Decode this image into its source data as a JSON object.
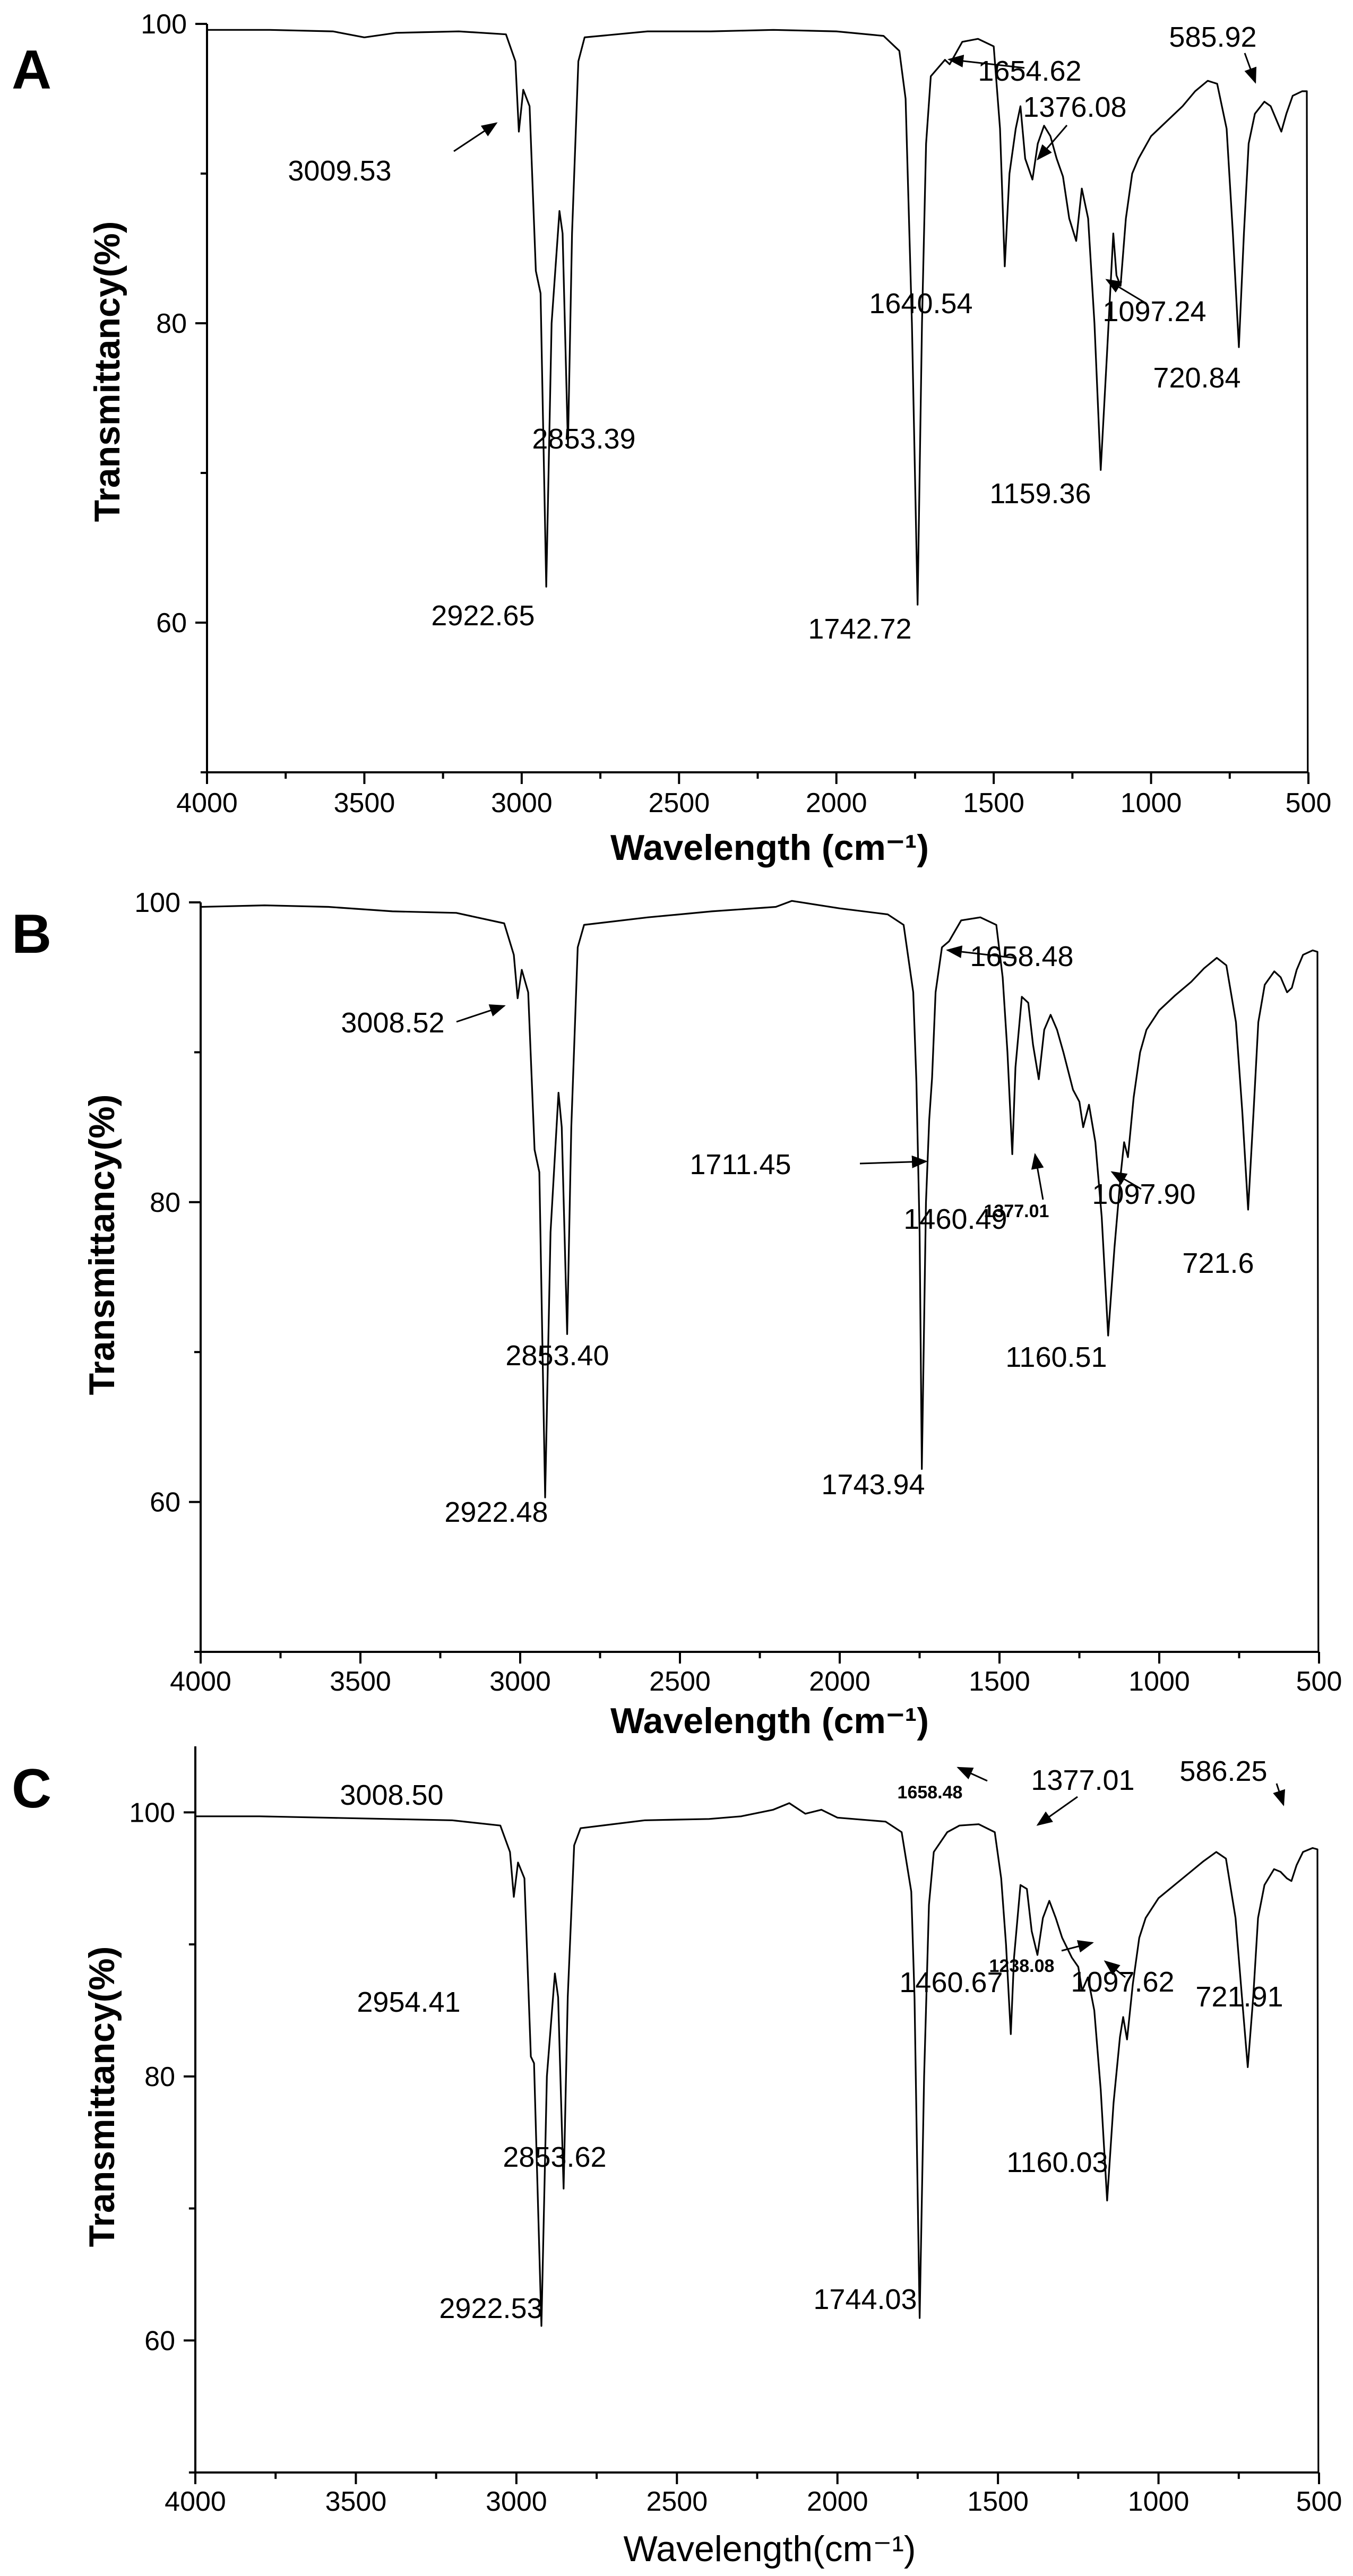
{
  "figure": "FTIR spectra panels A, B, C",
  "chart_data": [
    {
      "panel": "A",
      "type": "line",
      "title": "",
      "xlabel": "Wavelength (cm⁻¹)",
      "ylabel": "Transmittancy(%)",
      "xlim": [
        4000,
        500
      ],
      "ylim": [
        50,
        100
      ],
      "xticks": [
        4000,
        3500,
        3000,
        2500,
        2000,
        1500,
        1000,
        500
      ],
      "yticks": [
        60,
        80,
        100
      ],
      "spectrum": [
        [
          4000,
          99.6
        ],
        [
          3800,
          99.6
        ],
        [
          3600,
          99.5
        ],
        [
          3500,
          99.1
        ],
        [
          3400,
          99.4
        ],
        [
          3200,
          99.5
        ],
        [
          3050,
          99.3
        ],
        [
          3020,
          97.5
        ],
        [
          3009,
          92.8
        ],
        [
          2995,
          95.6
        ],
        [
          2975,
          94.5
        ],
        [
          2955,
          83.5
        ],
        [
          2940,
          82
        ],
        [
          2922,
          62.4
        ],
        [
          2905,
          80
        ],
        [
          2880,
          87.5
        ],
        [
          2870,
          86
        ],
        [
          2853,
          71.8
        ],
        [
          2840,
          86
        ],
        [
          2820,
          97.5
        ],
        [
          2800,
          99.1
        ],
        [
          2600,
          99.5
        ],
        [
          2400,
          99.5
        ],
        [
          2200,
          99.6
        ],
        [
          2000,
          99.5
        ],
        [
          1850,
          99.2
        ],
        [
          1800,
          98.2
        ],
        [
          1780,
          95
        ],
        [
          1760,
          80
        ],
        [
          1742,
          61.2
        ],
        [
          1728,
          80
        ],
        [
          1715,
          92
        ],
        [
          1700,
          96.5
        ],
        [
          1655,
          97.6
        ],
        [
          1640,
          97.3
        ],
        [
          1600,
          98.8
        ],
        [
          1550,
          99
        ],
        [
          1500,
          98.5
        ],
        [
          1480,
          93
        ],
        [
          1465,
          83.8
        ],
        [
          1450,
          90
        ],
        [
          1430,
          93
        ],
        [
          1415,
          94.5
        ],
        [
          1400,
          91
        ],
        [
          1377,
          89.6
        ],
        [
          1360,
          92
        ],
        [
          1340,
          93.2
        ],
        [
          1320,
          92.5
        ],
        [
          1300,
          91
        ],
        [
          1280,
          89.8
        ],
        [
          1260,
          87
        ],
        [
          1238,
          85.5
        ],
        [
          1220,
          89
        ],
        [
          1200,
          87
        ],
        [
          1180,
          80
        ],
        [
          1160,
          70.2
        ],
        [
          1140,
          78
        ],
        [
          1120,
          86
        ],
        [
          1110,
          83.2
        ],
        [
          1097,
          82.5
        ],
        [
          1080,
          87
        ],
        [
          1060,
          90
        ],
        [
          1040,
          91
        ],
        [
          1000,
          92.5
        ],
        [
          950,
          93.5
        ],
        [
          900,
          94.5
        ],
        [
          860,
          95.5
        ],
        [
          820,
          96.2
        ],
        [
          790,
          96
        ],
        [
          760,
          93
        ],
        [
          740,
          86
        ],
        [
          721,
          78.4
        ],
        [
          705,
          86
        ],
        [
          690,
          92
        ],
        [
          670,
          94
        ],
        [
          640,
          94.8
        ],
        [
          620,
          94.5
        ],
        [
          600,
          93.5
        ],
        [
          586,
          92.8
        ],
        [
          570,
          94
        ],
        [
          550,
          95.2
        ],
        [
          520,
          95.5
        ],
        [
          505,
          95.5
        ],
        [
          502,
          50
        ]
      ],
      "annotations": [
        {
          "label": "3009.53",
          "x": 3009.53
        },
        {
          "label": "2922.65",
          "x": 2922.65
        },
        {
          "label": "2853.39",
          "x": 2853.39
        },
        {
          "label": "1742.72",
          "x": 1742.72
        },
        {
          "label": "1654.62",
          "x": 1654.62
        },
        {
          "label": "1640.54",
          "x": 1640.54
        },
        {
          "label": "1376.08",
          "x": 1376.08
        },
        {
          "label": "1159.36",
          "x": 1159.36
        },
        {
          "label": "1097.24",
          "x": 1097.24
        },
        {
          "label": "720.84",
          "x": 720.84
        },
        {
          "label": "585.92",
          "x": 585.92
        }
      ]
    },
    {
      "panel": "B",
      "type": "line",
      "title": "",
      "xlabel": "Wavelength (cm⁻¹)",
      "ylabel": "Transmittancy(%)",
      "xlim": [
        4000,
        500
      ],
      "ylim": [
        50,
        100
      ],
      "xticks": [
        4000,
        3500,
        3000,
        2500,
        2000,
        1500,
        1000,
        500
      ],
      "yticks": [
        60,
        80,
        100
      ],
      "spectrum": [
        [
          4000,
          99.7
        ],
        [
          3800,
          99.8
        ],
        [
          3600,
          99.7
        ],
        [
          3400,
          99.4
        ],
        [
          3200,
          99.3
        ],
        [
          3050,
          98.6
        ],
        [
          3020,
          96.5
        ],
        [
          3008,
          93.6
        ],
        [
          2995,
          95.5
        ],
        [
          2975,
          94
        ],
        [
          2955,
          83.5
        ],
        [
          2940,
          82
        ],
        [
          2922,
          60.3
        ],
        [
          2905,
          78
        ],
        [
          2880,
          87.3
        ],
        [
          2870,
          85
        ],
        [
          2853,
          71.2
        ],
        [
          2840,
          85
        ],
        [
          2820,
          97
        ],
        [
          2800,
          98.5
        ],
        [
          2600,
          99
        ],
        [
          2400,
          99.4
        ],
        [
          2200,
          99.7
        ],
        [
          2150,
          100.1
        ],
        [
          2000,
          99.6
        ],
        [
          1850,
          99.2
        ],
        [
          1800,
          98.5
        ],
        [
          1770,
          94
        ],
        [
          1760,
          88
        ],
        [
          1750,
          78
        ],
        [
          1743,
          62.2
        ],
        [
          1730,
          80
        ],
        [
          1720,
          85.5
        ],
        [
          1711,
          88.3
        ],
        [
          1700,
          94
        ],
        [
          1680,
          97
        ],
        [
          1658,
          97.4
        ],
        [
          1620,
          98.8
        ],
        [
          1560,
          99
        ],
        [
          1510,
          98.5
        ],
        [
          1490,
          95
        ],
        [
          1475,
          90
        ],
        [
          1460,
          83.2
        ],
        [
          1450,
          89
        ],
        [
          1430,
          93.7
        ],
        [
          1410,
          93.3
        ],
        [
          1395,
          90.5
        ],
        [
          1377,
          88.2
        ],
        [
          1360,
          91.5
        ],
        [
          1340,
          92.5
        ],
        [
          1320,
          91.5
        ],
        [
          1300,
          90
        ],
        [
          1270,
          87.5
        ],
        [
          1250,
          86.7
        ],
        [
          1238,
          85
        ],
        [
          1220,
          86.5
        ],
        [
          1200,
          84
        ],
        [
          1180,
          79
        ],
        [
          1160,
          71.1
        ],
        [
          1140,
          77
        ],
        [
          1120,
          82
        ],
        [
          1110,
          84
        ],
        [
          1098,
          83
        ],
        [
          1080,
          87
        ],
        [
          1060,
          90
        ],
        [
          1040,
          91.5
        ],
        [
          1000,
          92.8
        ],
        [
          950,
          93.8
        ],
        [
          900,
          94.7
        ],
        [
          860,
          95.6
        ],
        [
          820,
          96.3
        ],
        [
          790,
          95.8
        ],
        [
          760,
          92
        ],
        [
          740,
          86
        ],
        [
          722,
          79.5
        ],
        [
          705,
          86
        ],
        [
          690,
          92
        ],
        [
          670,
          94.5
        ],
        [
          640,
          95.4
        ],
        [
          620,
          95
        ],
        [
          600,
          94
        ],
        [
          585,
          94.3
        ],
        [
          570,
          95.5
        ],
        [
          550,
          96.5
        ],
        [
          520,
          96.8
        ],
        [
          505,
          96.7
        ],
        [
          502,
          50
        ]
      ],
      "annotations": [
        {
          "label": "3008.52",
          "x": 3008.52
        },
        {
          "label": "2922.48",
          "x": 2922.48
        },
        {
          "label": "2853.40",
          "x": 2853.4
        },
        {
          "label": "1743.94",
          "x": 1743.94
        },
        {
          "label": "1711.45",
          "x": 1711.45
        },
        {
          "label": "1658.48",
          "x": 1658.48
        },
        {
          "label": "1460.49",
          "x": 1460.49
        },
        {
          "label": "1377.01",
          "x": 1377.01
        },
        {
          "label": "1160.51",
          "x": 1160.51
        },
        {
          "label": "1097.90",
          "x": 1097.9
        },
        {
          "label": "721.6",
          "x": 721.6
        }
      ]
    },
    {
      "panel": "C",
      "type": "line",
      "title": "",
      "xlabel": "Wavelength(cm⁻¹)",
      "ylabel": "Transmittancy(%)",
      "xlim": [
        4000,
        500
      ],
      "ylim": [
        50,
        105
      ],
      "xticks": [
        4000,
        3500,
        3000,
        2500,
        2000,
        1500,
        1000,
        500
      ],
      "yticks": [
        60,
        80,
        100
      ],
      "spectrum": [
        [
          4000,
          99.7
        ],
        [
          3800,
          99.7
        ],
        [
          3600,
          99.6
        ],
        [
          3400,
          99.5
        ],
        [
          3200,
          99.4
        ],
        [
          3050,
          99
        ],
        [
          3020,
          97
        ],
        [
          3008,
          93.6
        ],
        [
          2995,
          96.2
        ],
        [
          2975,
          95
        ],
        [
          2955,
          81.5
        ],
        [
          2945,
          81
        ],
        [
          2922,
          61.1
        ],
        [
          2905,
          80
        ],
        [
          2880,
          87.8
        ],
        [
          2870,
          86
        ],
        [
          2853,
          71.5
        ],
        [
          2840,
          86
        ],
        [
          2820,
          97.5
        ],
        [
          2800,
          98.8
        ],
        [
          2600,
          99.4
        ],
        [
          2400,
          99.5
        ],
        [
          2300,
          99.7
        ],
        [
          2200,
          100.2
        ],
        [
          2150,
          100.7
        ],
        [
          2100,
          99.9
        ],
        [
          2050,
          100.2
        ],
        [
          2000,
          99.6
        ],
        [
          1850,
          99.3
        ],
        [
          1800,
          98.5
        ],
        [
          1770,
          94
        ],
        [
          1760,
          86
        ],
        [
          1744,
          61.7
        ],
        [
          1730,
          80
        ],
        [
          1715,
          93
        ],
        [
          1700,
          97
        ],
        [
          1658,
          98.5
        ],
        [
          1620,
          99
        ],
        [
          1560,
          99.1
        ],
        [
          1510,
          98.5
        ],
        [
          1490,
          95
        ],
        [
          1475,
          90
        ],
        [
          1460,
          83.2
        ],
        [
          1450,
          89
        ],
        [
          1430,
          94.5
        ],
        [
          1410,
          94.2
        ],
        [
          1395,
          91
        ],
        [
          1377,
          89.2
        ],
        [
          1360,
          92
        ],
        [
          1340,
          93.3
        ],
        [
          1320,
          92
        ],
        [
          1300,
          90.5
        ],
        [
          1270,
          89
        ],
        [
          1250,
          88.3
        ],
        [
          1238,
          86.5
        ],
        [
          1220,
          87.5
        ],
        [
          1200,
          85
        ],
        [
          1180,
          79
        ],
        [
          1160,
          70.6
        ],
        [
          1140,
          78
        ],
        [
          1120,
          83
        ],
        [
          1110,
          84.5
        ],
        [
          1098,
          82.8
        ],
        [
          1080,
          87
        ],
        [
          1060,
          90.5
        ],
        [
          1040,
          92
        ],
        [
          1000,
          93.5
        ],
        [
          950,
          94.5
        ],
        [
          900,
          95.5
        ],
        [
          860,
          96.3
        ],
        [
          820,
          97
        ],
        [
          790,
          96.5
        ],
        [
          760,
          92
        ],
        [
          740,
          86
        ],
        [
          722,
          80.7
        ],
        [
          705,
          86
        ],
        [
          690,
          92
        ],
        [
          670,
          94.5
        ],
        [
          640,
          95.7
        ],
        [
          620,
          95.5
        ],
        [
          600,
          95
        ],
        [
          586,
          94.8
        ],
        [
          570,
          96
        ],
        [
          550,
          97
        ],
        [
          520,
          97.3
        ],
        [
          505,
          97.2
        ],
        [
          502,
          50
        ]
      ],
      "annotations": [
        {
          "label": "3008.50",
          "x": 3008.5
        },
        {
          "label": "2954.41",
          "x": 2954.41
        },
        {
          "label": "2922.53",
          "x": 2922.53
        },
        {
          "label": "2853.62",
          "x": 2853.62
        },
        {
          "label": "1744.03",
          "x": 1744.03
        },
        {
          "label": "1658.48",
          "x": 1658.48
        },
        {
          "label": "1460.67",
          "x": 1460.67
        },
        {
          "label": "1377.01",
          "x": 1377.01
        },
        {
          "label": "1238.08",
          "x": 1238.08
        },
        {
          "label": "1160.03",
          "x": 1160.03
        },
        {
          "label": "1097.62",
          "x": 1097.62
        },
        {
          "label": "721.91",
          "x": 721.91
        },
        {
          "label": "586.25",
          "x": 586.25
        }
      ]
    }
  ]
}
